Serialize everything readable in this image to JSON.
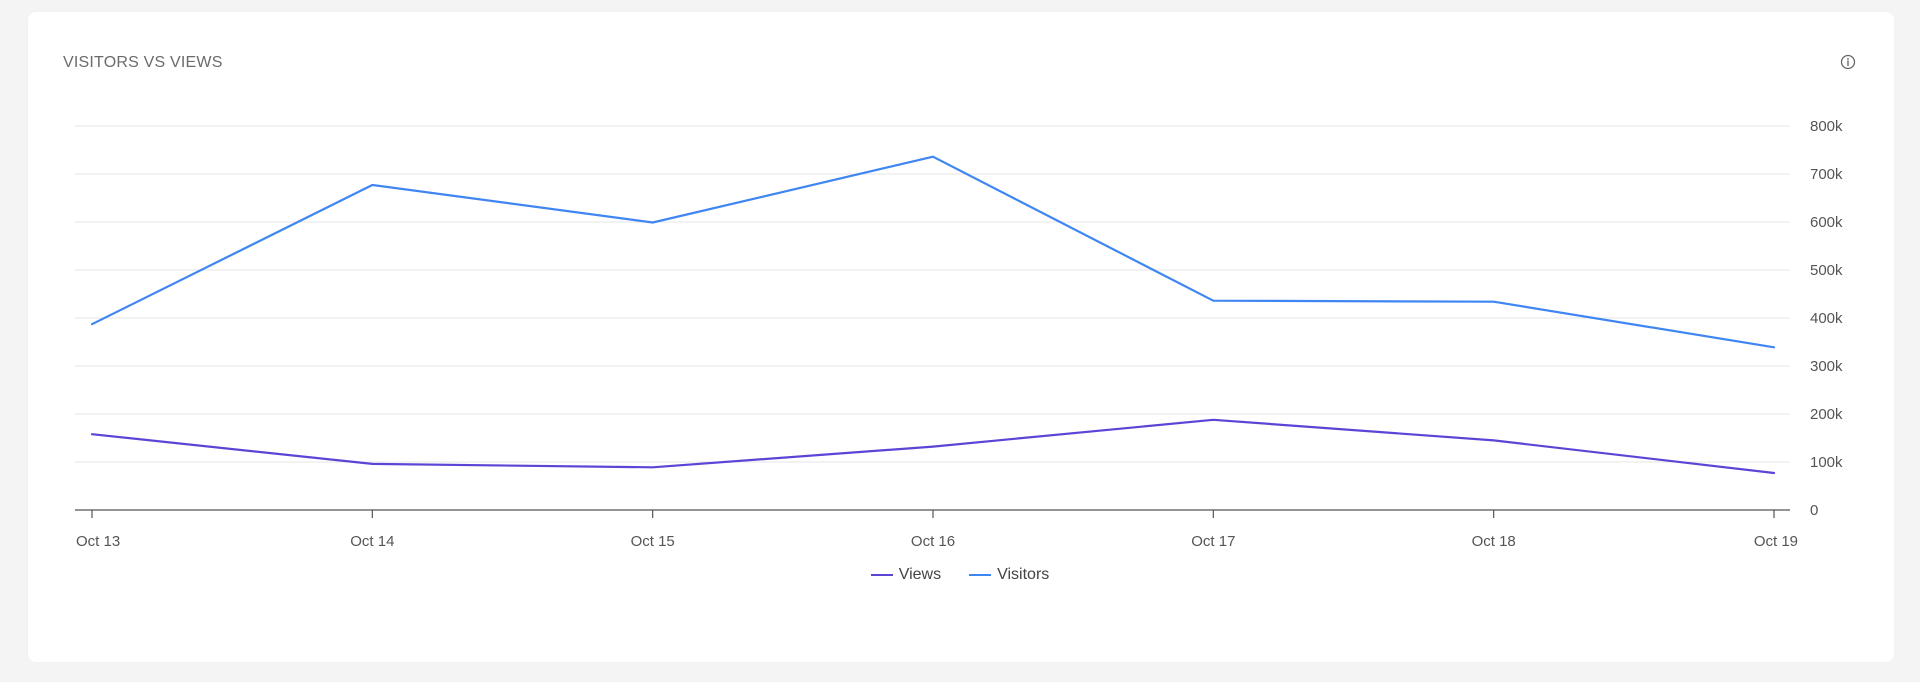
{
  "card": {
    "title": "VISITORS VS VIEWS",
    "info_icon": "info-circle-icon"
  },
  "chart_data": {
    "type": "line",
    "title": "VISITORS VS VIEWS",
    "xlabel": "",
    "ylabel": "",
    "categories": [
      "Oct 13",
      "Oct 14",
      "Oct 15",
      "Oct 16",
      "Oct 17",
      "Oct 18",
      "Oct 19"
    ],
    "ylim": [
      0,
      800000
    ],
    "yticks": [
      0,
      100000,
      200000,
      300000,
      400000,
      500000,
      600000,
      700000,
      800000
    ],
    "ytick_labels": [
      "0",
      "100k",
      "200k",
      "300k",
      "400k",
      "500k",
      "600k",
      "700k",
      "800k"
    ],
    "y_axis_side": "right",
    "grid": true,
    "legend_position": "bottom-center",
    "series": [
      {
        "name": "Views",
        "color": "#5b45d6",
        "values": [
          158000,
          96000,
          89000,
          132000,
          188000,
          145000,
          77000
        ]
      },
      {
        "name": "Visitors",
        "color": "#3f86f2",
        "values": [
          387000,
          677000,
          599000,
          736000,
          436000,
          434000,
          339000
        ]
      }
    ]
  },
  "legend": {
    "items": [
      {
        "label": "Views",
        "color": "#5b45d6"
      },
      {
        "label": "Visitors",
        "color": "#3f86f2"
      }
    ]
  }
}
